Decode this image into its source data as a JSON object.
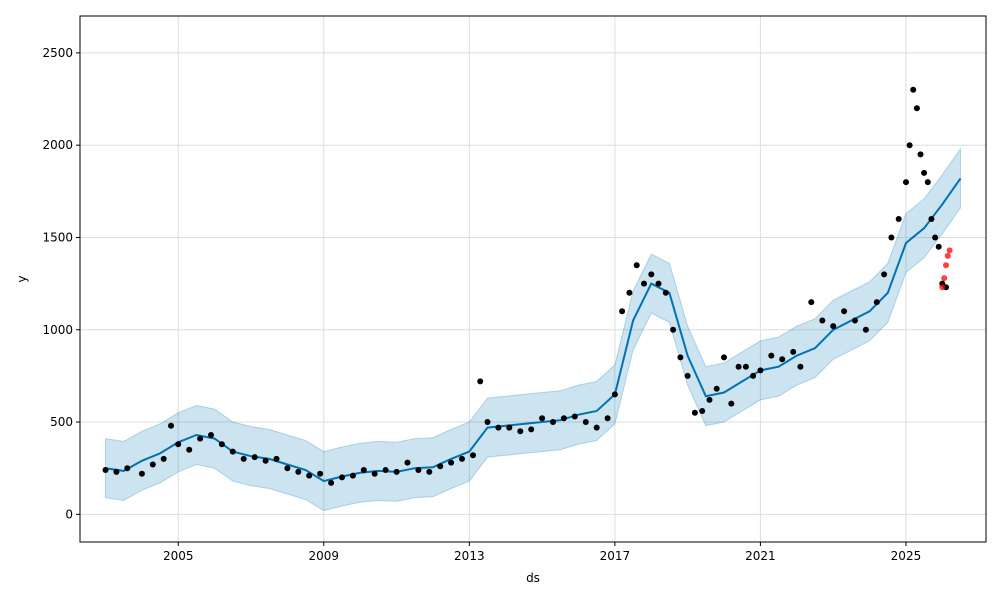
{
  "chart_data": {
    "type": "line",
    "title": "",
    "xlabel": "ds",
    "ylabel": "y",
    "xlim": [
      2002.3,
      2027.2
    ],
    "ylim": [
      -150,
      2700
    ],
    "x_ticks": [
      {
        "value": 2005,
        "label": "2005"
      },
      {
        "value": 2009,
        "label": "2009"
      },
      {
        "value": 2013,
        "label": "2013"
      },
      {
        "value": 2017,
        "label": "2017"
      },
      {
        "value": 2021,
        "label": "2021"
      },
      {
        "value": 2025,
        "label": "2025"
      }
    ],
    "y_ticks": [
      {
        "value": 0,
        "label": "0"
      },
      {
        "value": 500,
        "label": "500"
      },
      {
        "value": 1000,
        "label": "1000"
      },
      {
        "value": 1500,
        "label": "1500"
      },
      {
        "value": 2000,
        "label": "2000"
      },
      {
        "value": 2500,
        "label": "2500"
      }
    ],
    "grid": true,
    "colors": {
      "forecast_line": "#0072b2",
      "interval_fill": "#0072b2",
      "observed_points": "#000000",
      "recent_points": "#ff0000"
    },
    "series": [
      {
        "kind": "forecast",
        "x": [
          2003.0,
          2003.5,
          2004.0,
          2004.5,
          2005.0,
          2005.5,
          2006.0,
          2006.5,
          2007.0,
          2007.5,
          2008.0,
          2008.5,
          2009.0,
          2009.5,
          2010.0,
          2010.5,
          2011.0,
          2011.5,
          2012.0,
          2012.5,
          2013.0,
          2013.5,
          2014.0,
          2014.5,
          2015.0,
          2015.5,
          2016.0,
          2016.5,
          2017.0,
          2017.5,
          2018.0,
          2018.5,
          2019.0,
          2019.5,
          2020.0,
          2020.5,
          2021.0,
          2021.5,
          2022.0,
          2022.5,
          2023.0,
          2023.5,
          2024.0,
          2024.5,
          2025.0,
          2025.5,
          2026.0,
          2026.5
        ],
        "yhat": [
          250,
          235,
          290,
          330,
          390,
          430,
          410,
          340,
          315,
          300,
          270,
          240,
          180,
          205,
          225,
          235,
          230,
          250,
          255,
          300,
          340,
          470,
          480,
          490,
          500,
          510,
          540,
          560,
          650,
          1050,
          1250,
          1200,
          860,
          640,
          660,
          720,
          780,
          800,
          860,
          900,
          1000,
          1050,
          1100,
          1200,
          1470,
          1550,
          1680,
          1820
        ],
        "band": 160
      },
      {
        "kind": "observed",
        "x": [
          2003.0,
          2003.3,
          2003.6,
          2004.0,
          2004.3,
          2004.6,
          2004.8,
          2005.0,
          2005.3,
          2005.6,
          2005.9,
          2006.2,
          2006.5,
          2006.8,
          2007.1,
          2007.4,
          2007.7,
          2008.0,
          2008.3,
          2008.6,
          2008.9,
          2009.2,
          2009.5,
          2009.8,
          2010.1,
          2010.4,
          2010.7,
          2011.0,
          2011.3,
          2011.6,
          2011.9,
          2012.2,
          2012.5,
          2012.8,
          2013.1,
          2013.3,
          2013.5,
          2013.8,
          2014.1,
          2014.4,
          2014.7,
          2015.0,
          2015.3,
          2015.6,
          2015.9,
          2016.2,
          2016.5,
          2016.8,
          2017.0,
          2017.2,
          2017.4,
          2017.6,
          2017.8,
          2018.0,
          2018.2,
          2018.4,
          2018.6,
          2018.8,
          2019.0,
          2019.2,
          2019.4,
          2019.6,
          2019.8,
          2020.0,
          2020.2,
          2020.4,
          2020.6,
          2020.8,
          2021.0,
          2021.3,
          2021.6,
          2021.9,
          2022.1,
          2022.4,
          2022.7,
          2023.0,
          2023.3,
          2023.6,
          2023.9,
          2024.2,
          2024.4,
          2024.6,
          2024.8,
          2025.0,
          2025.1,
          2025.2,
          2025.3,
          2025.4,
          2025.5,
          2025.6,
          2025.7,
          2025.8,
          2025.9,
          2026.0,
          2026.1
        ],
        "y": [
          240,
          230,
          250,
          220,
          270,
          300,
          480,
          380,
          350,
          410,
          430,
          380,
          340,
          300,
          310,
          290,
          300,
          250,
          230,
          210,
          220,
          170,
          200,
          210,
          240,
          220,
          240,
          230,
          280,
          240,
          230,
          260,
          280,
          300,
          320,
          720,
          500,
          470,
          470,
          450,
          460,
          520,
          500,
          520,
          530,
          500,
          470,
          520,
          650,
          1100,
          1200,
          1350,
          1250,
          1300,
          1250,
          1200,
          1000,
          850,
          750,
          550,
          560,
          620,
          680,
          850,
          600,
          800,
          800,
          750,
          780,
          860,
          840,
          880,
          800,
          1150,
          1050,
          1020,
          1100,
          1050,
          1000,
          1150,
          1300,
          1500,
          1600,
          1800,
          2000,
          2300,
          2200,
          1950,
          1850,
          1800,
          1600,
          1500,
          1450,
          1250,
          1230
        ]
      },
      {
        "kind": "recent",
        "x": [
          2026.0,
          2026.05,
          2026.1,
          2026.15,
          2026.2
        ],
        "y": [
          1230,
          1280,
          1350,
          1400,
          1430
        ]
      }
    ]
  }
}
